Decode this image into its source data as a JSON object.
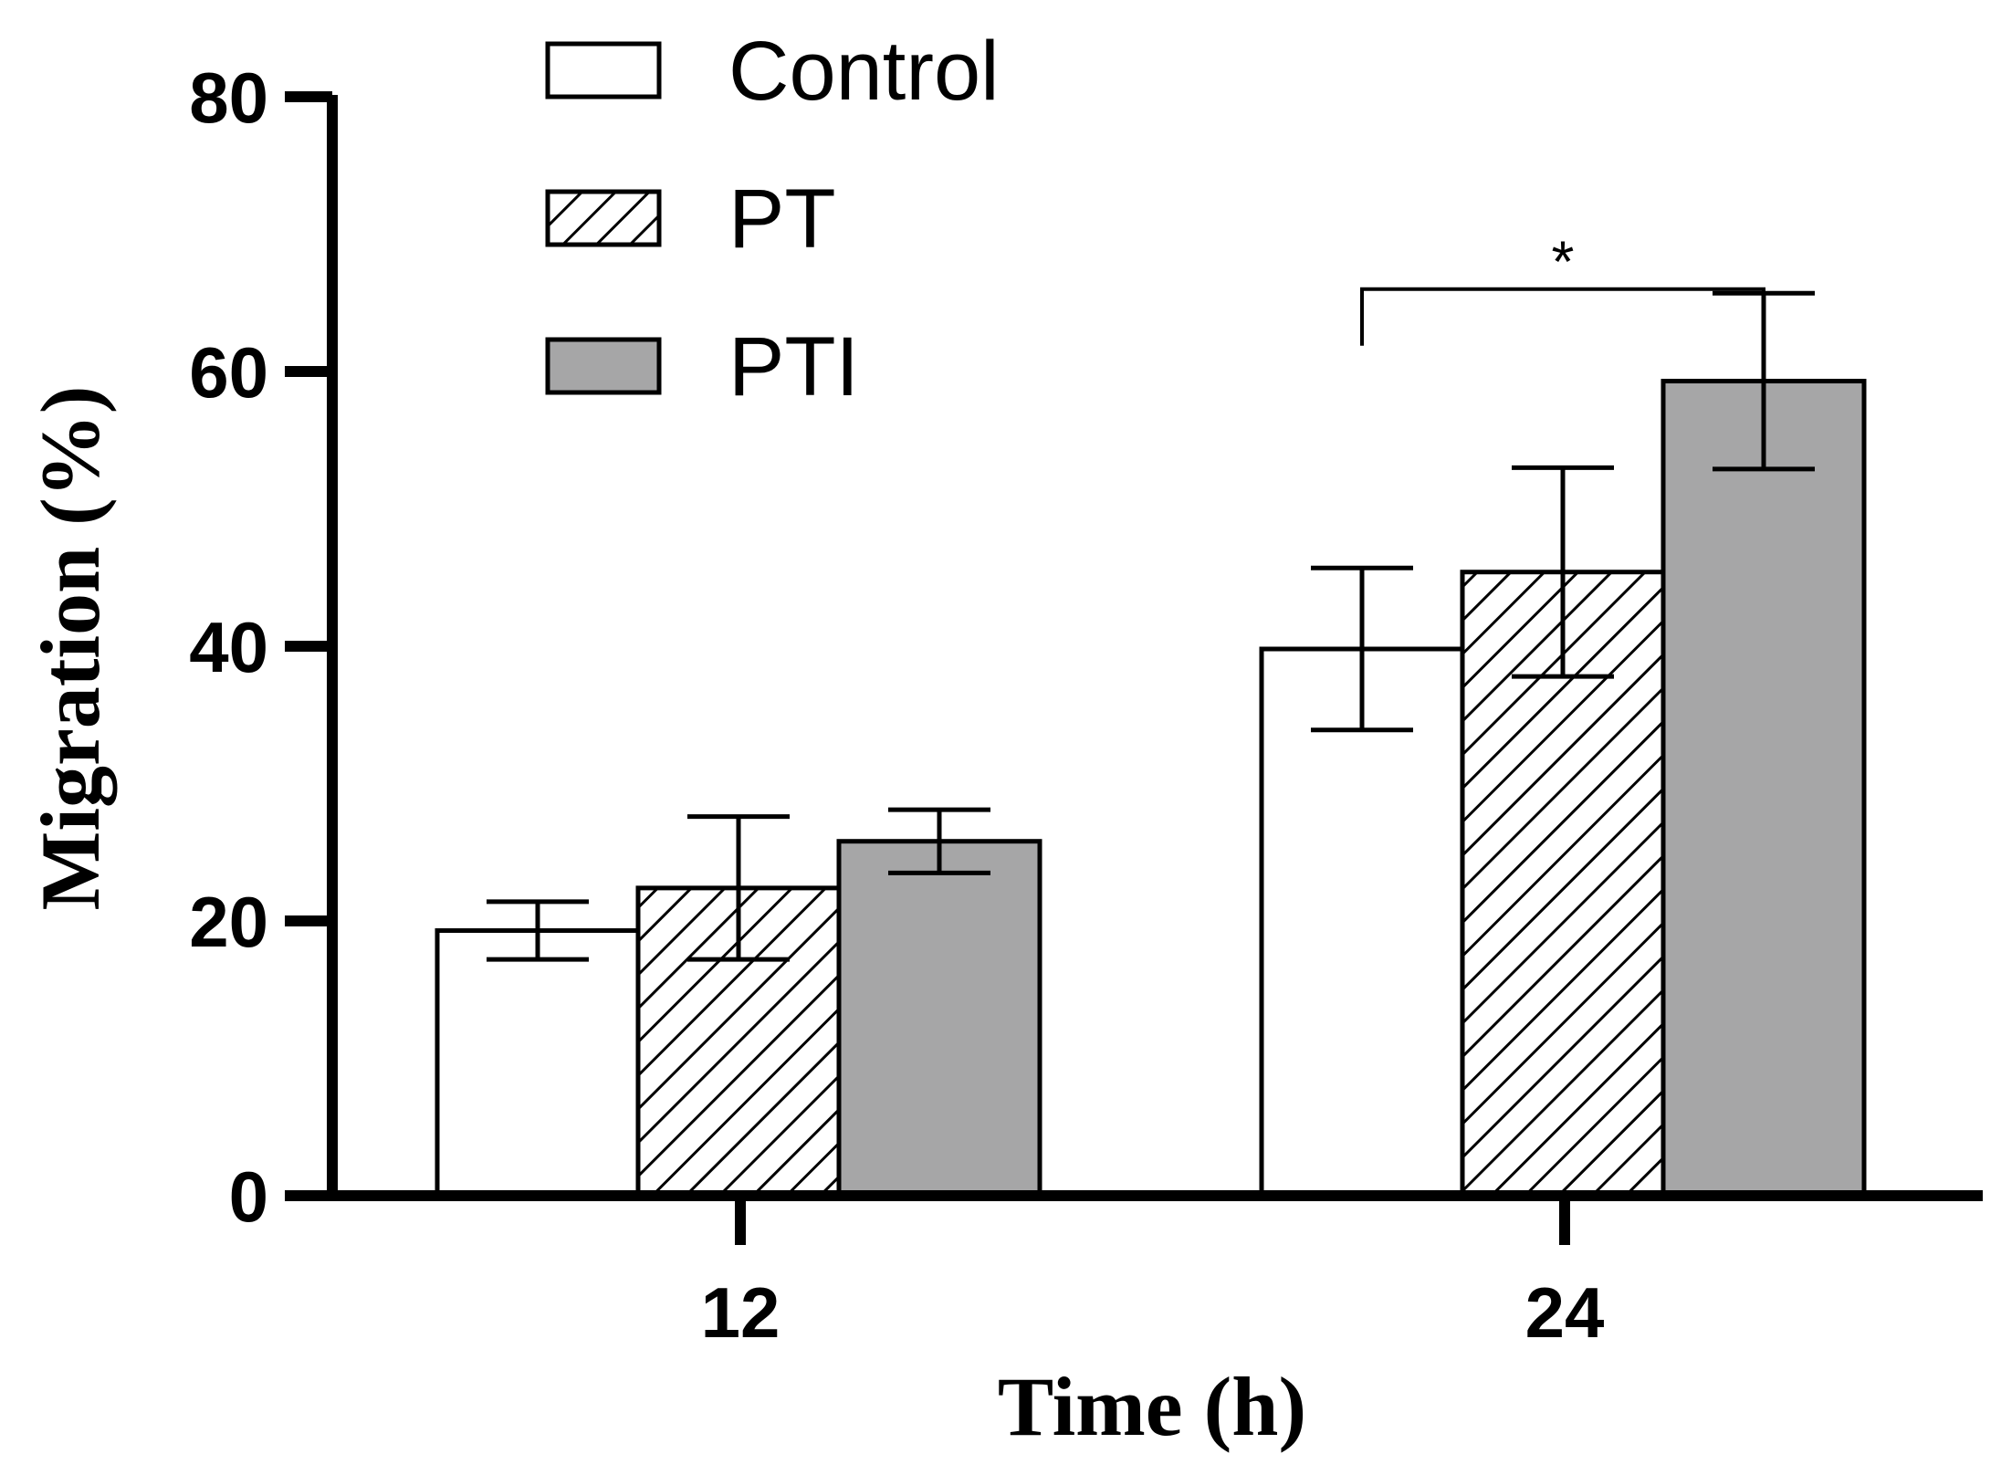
{
  "chart_data": {
    "type": "bar",
    "title": "",
    "xlabel": "Time (h)",
    "ylabel": "Migration (%)",
    "ylim": [
      0,
      80
    ],
    "yticks": [
      0,
      20,
      40,
      60,
      80
    ],
    "categories": [
      "12",
      "24"
    ],
    "series": [
      {
        "name": "Control",
        "pattern": "empty",
        "fill": "#ffffff",
        "values": [
          19.3,
          39.8
        ],
        "errors": [
          2.1,
          5.9
        ]
      },
      {
        "name": "PT",
        "pattern": "hatched",
        "fill": "#ffffff",
        "values": [
          22.4,
          45.4
        ],
        "errors": [
          5.2,
          7.6
        ]
      },
      {
        "name": "PTI",
        "pattern": "solid",
        "fill": "#a6a6a7",
        "values": [
          25.8,
          59.3
        ],
        "errors": [
          2.3,
          6.4
        ]
      }
    ],
    "legend": {
      "position": "top-left",
      "entries": [
        "Control",
        "PT",
        "PTI"
      ]
    },
    "annotations": [
      {
        "type": "significance",
        "label": "*",
        "category": "24",
        "from_series": "Control",
        "to_series": "PTI",
        "level": 66
      }
    ]
  }
}
